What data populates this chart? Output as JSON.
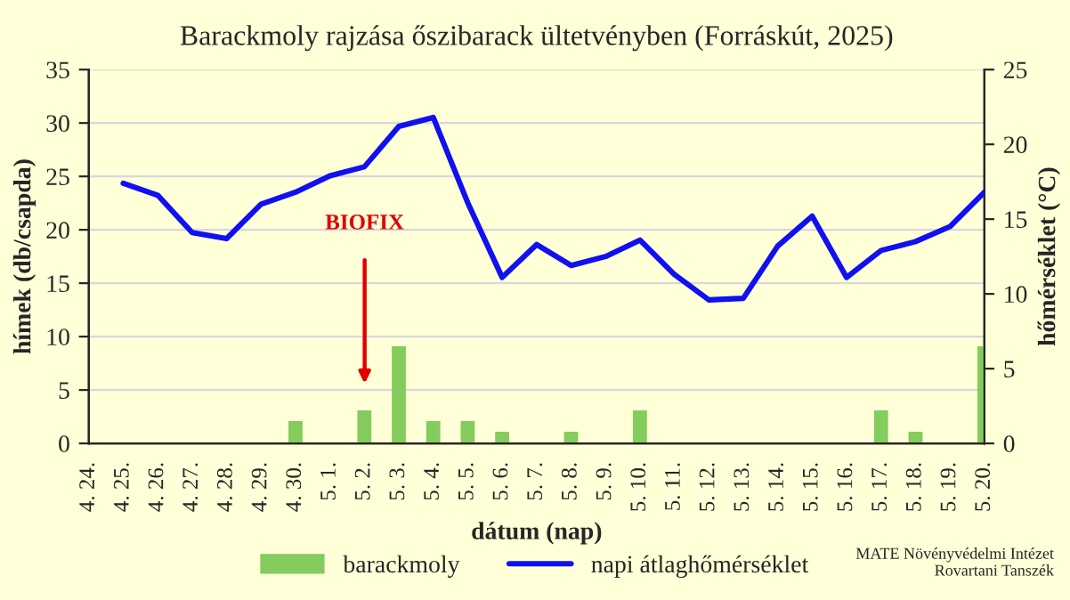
{
  "chart_data": {
    "type": "bar",
    "title": "Barackmoly rajzása őszibarack ültetvényben (Forráskút, 2025)",
    "xlabel": "dátum (nap)",
    "ylabel": "hímek (db/csapda)",
    "y2label": "hőmérséklet (°C)",
    "categories": [
      "4. 24.",
      "4. 25.",
      "4. 26.",
      "4. 27.",
      "4. 28.",
      "4. 29.",
      "4. 30.",
      "5. 1.",
      "5. 2.",
      "5. 3.",
      "5. 4.",
      "5. 5.",
      "5. 6.",
      "5. 7.",
      "5. 8.",
      "5. 9.",
      "5. 10.",
      "5. 11.",
      "5. 12.",
      "5. 13.",
      "5. 14.",
      "5. 15.",
      "5. 16.",
      "5. 17.",
      "5. 18.",
      "5. 19.",
      "5. 20."
    ],
    "series": [
      {
        "name": "barackmoly",
        "color": "#84cc5c",
        "values": [
          0,
          0,
          0,
          0,
          0,
          0,
          2,
          0,
          3,
          9,
          2,
          2,
          1,
          0,
          1,
          0,
          3,
          0,
          0,
          0,
          0,
          0,
          0,
          3,
          1,
          0,
          9
        ]
      },
      {
        "name": "napi átlaghőmérséklet",
        "type": "line",
        "axis": "y2",
        "color": "#1010f0",
        "values": [
          null,
          17.4,
          16.6,
          14.1,
          13.7,
          16.0,
          16.8,
          17.9,
          18.5,
          21.2,
          21.8,
          16.1,
          11.1,
          13.3,
          11.9,
          12.5,
          13.6,
          11.3,
          9.6,
          9.7,
          13.2,
          15.2,
          11.1,
          12.9,
          13.5,
          14.5,
          16.8
        ]
      }
    ],
    "ylim": [
      0,
      35
    ],
    "yticks": [
      0,
      5,
      10,
      15,
      20,
      25,
      30,
      35
    ],
    "y2lim": [
      0,
      25
    ],
    "y2ticks": [
      0,
      5,
      10,
      15,
      20,
      25
    ],
    "grid": "y",
    "legend": "bottom",
    "marker": "none",
    "line_style": "solid",
    "annotations": [
      "BIOFIX",
      "MATE Növényvédelmi Intézet\nRovartani Tanszék"
    ]
  }
}
